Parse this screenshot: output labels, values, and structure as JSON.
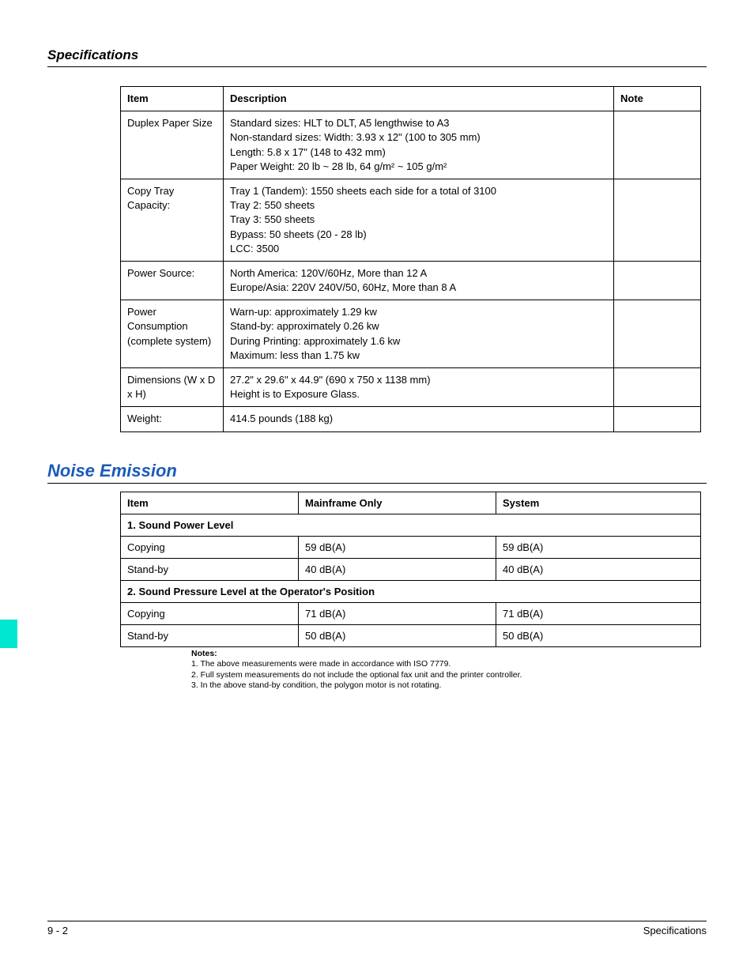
{
  "colors": {
    "heading_blue": "#1a5bb8",
    "tab_teal": "#00e7d0",
    "text": "#000000",
    "background": "#ffffff",
    "border": "#000000"
  },
  "header": {
    "title": "Specifications"
  },
  "spec_table": {
    "columns": [
      "Item",
      "Description",
      "Note"
    ],
    "rows": [
      {
        "item": "Duplex Paper Size",
        "desc_lines": [
          "Standard sizes: HLT to DLT, A5 lengthwise to A3",
          "Non-standard sizes: Width: 3.93 x 12\" (100 to 305 mm)",
          " Length: 5.8 x 17\" (148 to 432 mm)",
          "Paper Weight: 20 lb ~ 28 lb, 64 g/m² ~ 105 g/m²"
        ],
        "note": ""
      },
      {
        "item": "Copy Tray Capacity:",
        "desc_lines": [
          "Tray 1 (Tandem): 1550 sheets each side for a total of 3100",
          "Tray 2: 550 sheets",
          "Tray 3: 550 sheets",
          "Bypass: 50 sheets (20 - 28 lb)",
          "LCC: 3500"
        ],
        "note": ""
      },
      {
        "item": "Power Source:",
        "desc_lines": [
          "North America: 120V/60Hz, More than 12 A",
          "Europe/Asia: 220V 240V/50, 60Hz, More than 8 A"
        ],
        "note": ""
      },
      {
        "item": "Power Consumption (complete system)",
        "desc_lines": [
          "Warn-up: approximately 1.29 kw",
          "Stand-by: approximately 0.26 kw",
          "During Printing: approximately 1.6 kw",
          "Maximum: less than 1.75 kw"
        ],
        "note": ""
      },
      {
        "item": "Dimensions (W x D x H)",
        "desc_lines": [
          "27.2\" x 29.6\" x 44.9\" (690 x 750 x 1138 mm)",
          "Height is to Exposure Glass."
        ],
        "note": ""
      },
      {
        "item": "Weight:",
        "desc_lines": [
          "414.5 pounds (188 kg)"
        ],
        "note": ""
      }
    ]
  },
  "noise_section": {
    "title": "Noise Emission",
    "columns": [
      "Item",
      "Mainframe Only",
      "System"
    ],
    "groups": [
      {
        "header": "1. Sound Power Level",
        "rows": [
          {
            "item": "Copying",
            "mainframe": "59 dB(A)",
            "system": "59 dB(A)"
          },
          {
            "item": "Stand-by",
            "mainframe": "40 dB(A)",
            "system": "40 dB(A)"
          }
        ]
      },
      {
        "header": "2. Sound Pressure Level at the Operator's Position",
        "rows": [
          {
            "item": "Copying",
            "mainframe": "71 dB(A)",
            "system": "71 dB(A)"
          },
          {
            "item": "Stand-by",
            "mainframe": "50 dB(A)",
            "system": "50 dB(A)"
          }
        ]
      }
    ]
  },
  "notes": {
    "label": "Notes:",
    "items": [
      "1. The above measurements were made in accordance with ISO 7779.",
      "2. Full system measurements do not include the optional fax unit and the printer controller.",
      "3. In the above stand-by condition, the polygon motor is not rotating."
    ]
  },
  "footer": {
    "left": "9 - 2",
    "right": "Specifications"
  }
}
